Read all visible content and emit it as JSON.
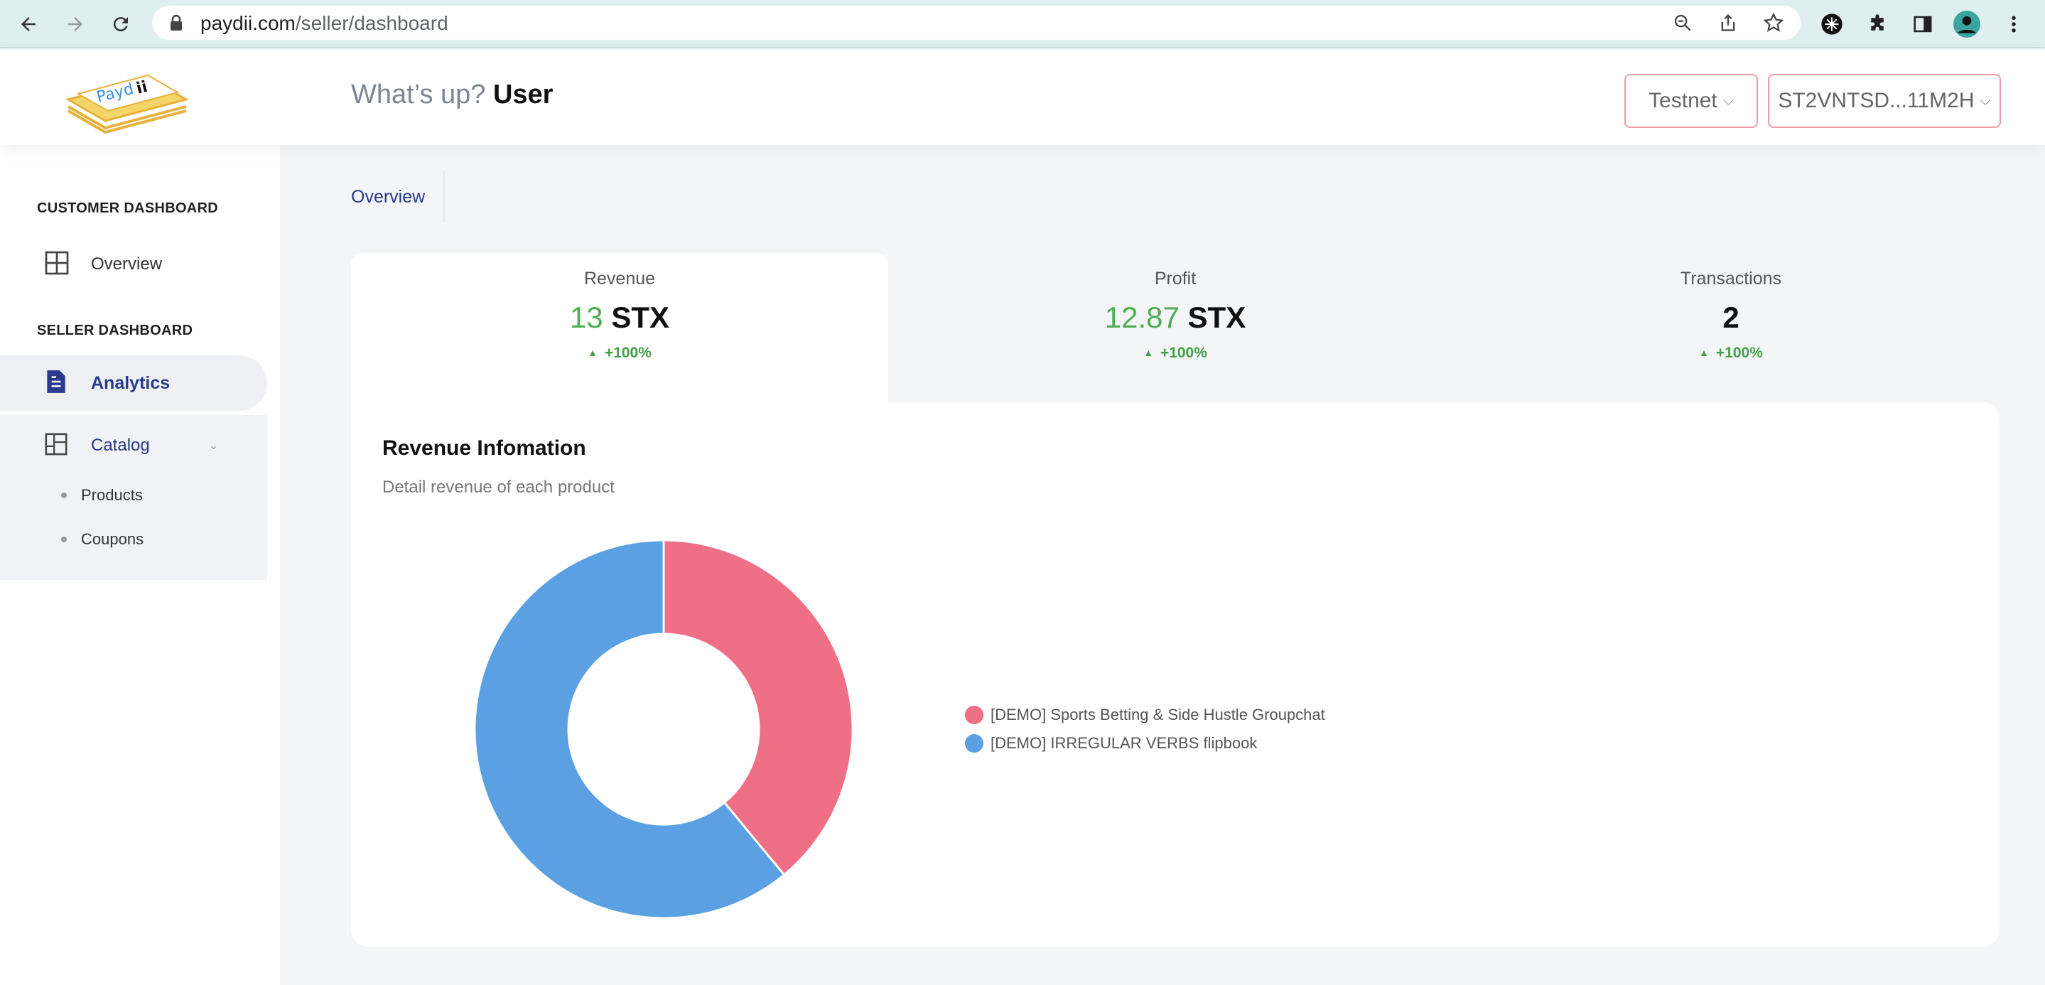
{
  "browser": {
    "url_host": "paydii.com",
    "url_path": "/seller/dashboard"
  },
  "header": {
    "logo_text": "Paydii",
    "greeting_prefix": "What’s up?",
    "greeting_user": "User",
    "network_label": "Testnet",
    "wallet_label": "ST2VNTSD...11M2H"
  },
  "sidebar": {
    "customer_section": "CUSTOMER DASHBOARD",
    "customer_items": [
      {
        "label": "Overview"
      }
    ],
    "seller_section": "SELLER DASHBOARD",
    "seller_items": [
      {
        "label": "Analytics"
      },
      {
        "label": "Catalog"
      }
    ],
    "catalog_sub": [
      {
        "label": "Products"
      },
      {
        "label": "Coupons"
      }
    ]
  },
  "main": {
    "tab_label": "Overview",
    "stats": [
      {
        "title": "Revenue",
        "number": "13",
        "unit": "STX",
        "change": "+100%"
      },
      {
        "title": "Profit",
        "number": "12.87",
        "unit": "STX",
        "change": "+100%"
      },
      {
        "title": "Transactions",
        "number": "",
        "unit": "2",
        "change": "+100%"
      }
    ],
    "card_title": "Revenue Infomation",
    "card_subtitle": "Detail revenue of each product"
  },
  "chart_data": {
    "type": "pie",
    "series": [
      {
        "name": "[DEMO] Sports Betting & Side Hustle Groupchat",
        "value": 39,
        "color": "#ef6f86"
      },
      {
        "name": "[DEMO] IRREGULAR VERBS flipbook",
        "value": 61,
        "color": "#5aa0e3"
      }
    ],
    "legend_position": "right"
  },
  "colors": {
    "accent": "#2a3a8c",
    "positive": "#43a047",
    "button_border": "#ef9aa8"
  }
}
